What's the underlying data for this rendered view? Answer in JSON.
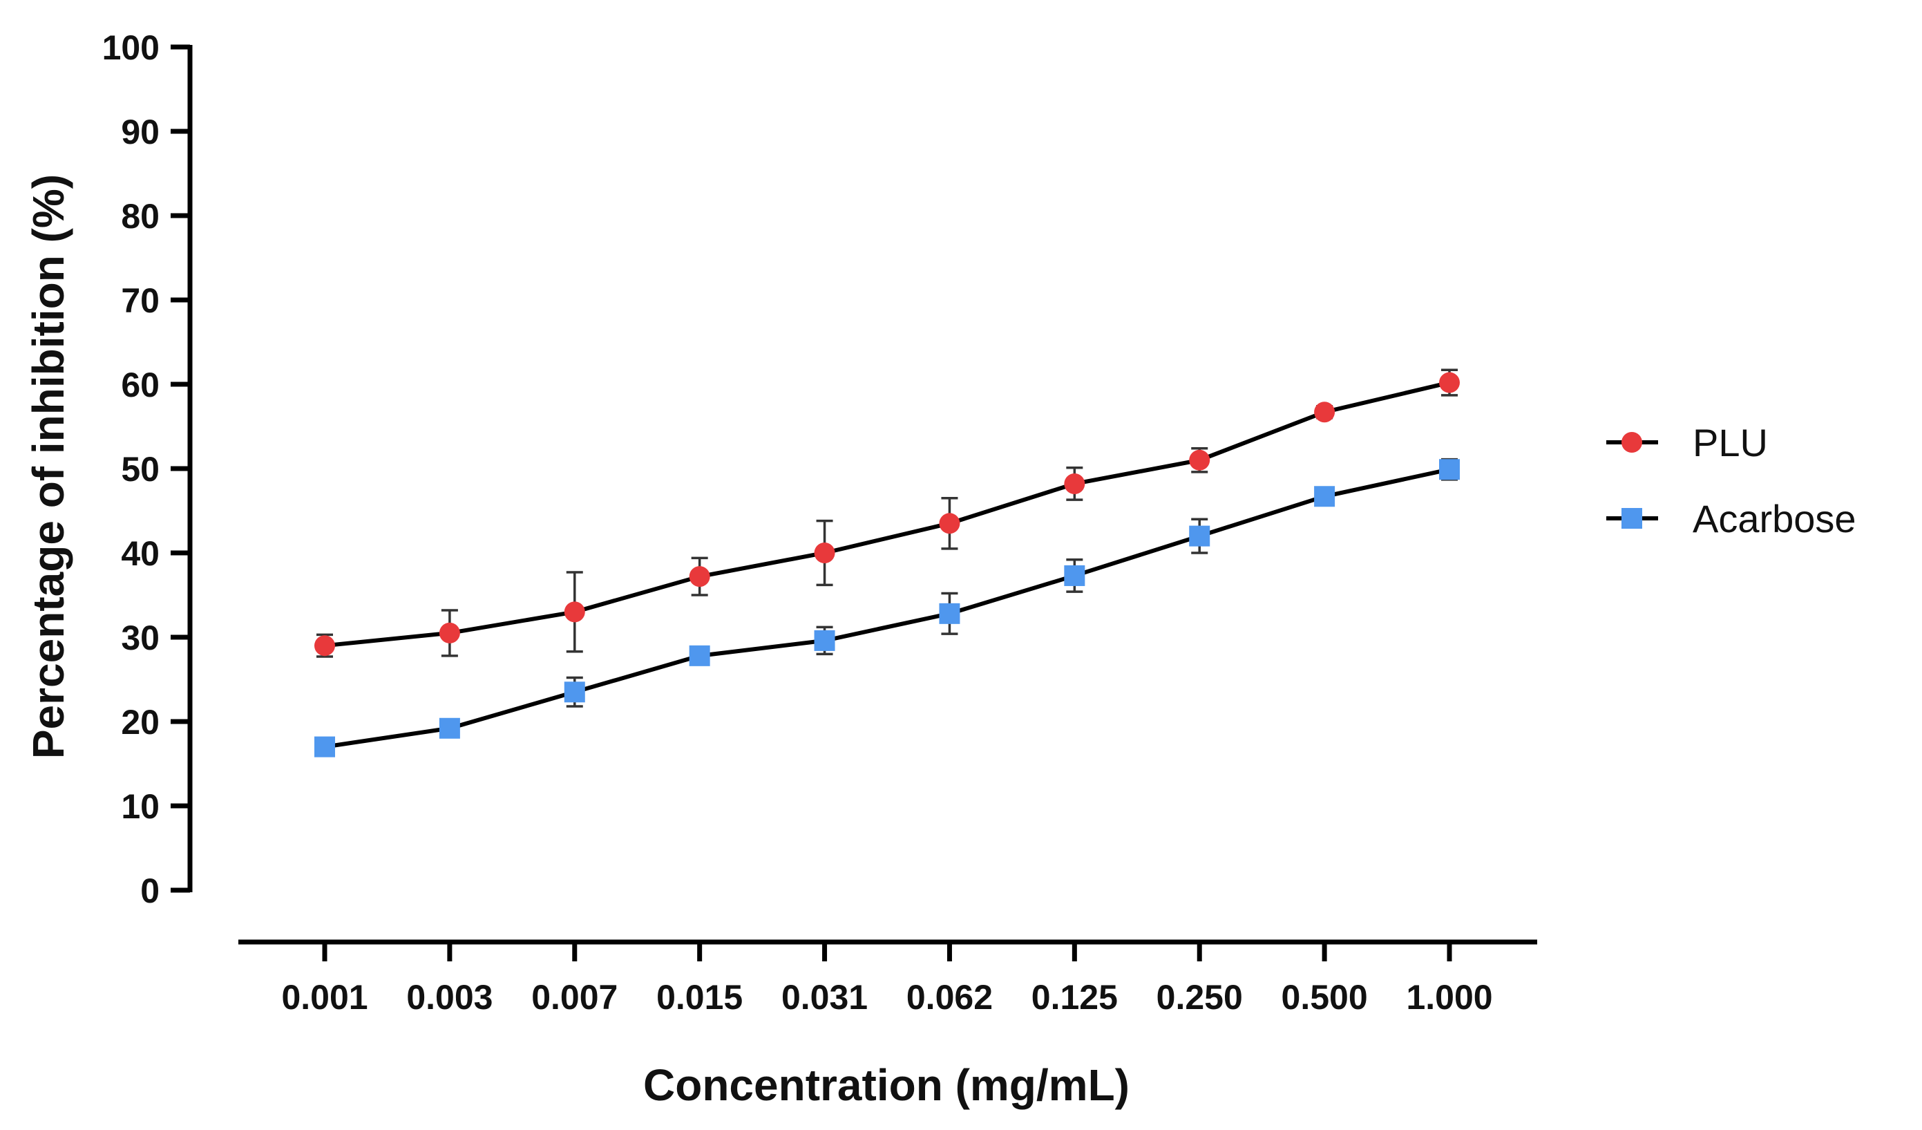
{
  "chart_data": {
    "type": "line",
    "title": "",
    "xlabel": "Concentration (mg/mL)",
    "ylabel": "Percentage of inhibition (%)",
    "ylim": [
      0,
      100
    ],
    "yticks": [
      "0",
      "10",
      "20",
      "30",
      "40",
      "50",
      "60",
      "70",
      "80",
      "90",
      "100"
    ],
    "categories": [
      "0.001",
      "0.003",
      "0.007",
      "0.015",
      "0.031",
      "0.062",
      "0.125",
      "0.250",
      "0.500",
      "1.000"
    ],
    "legend_position": "right",
    "grid": false,
    "series": [
      {
        "name": "PLU",
        "marker": "circle",
        "color": "#e8393b",
        "values": [
          29.0,
          30.5,
          33.0,
          37.2,
          40.0,
          43.5,
          48.2,
          51.0,
          56.7,
          60.2
        ],
        "errors": [
          1.3,
          2.7,
          4.7,
          2.2,
          3.8,
          3.0,
          1.9,
          1.4,
          0.7,
          1.5
        ]
      },
      {
        "name": "Acarbose",
        "marker": "square",
        "color": "#4f97ee",
        "values": [
          17.0,
          19.2,
          23.5,
          27.8,
          29.6,
          32.8,
          37.3,
          42.0,
          46.7,
          49.9
        ],
        "errors": [
          0.6,
          0.7,
          1.7,
          0.8,
          1.6,
          2.4,
          1.9,
          2.0,
          0.9,
          1.2
        ]
      }
    ]
  }
}
